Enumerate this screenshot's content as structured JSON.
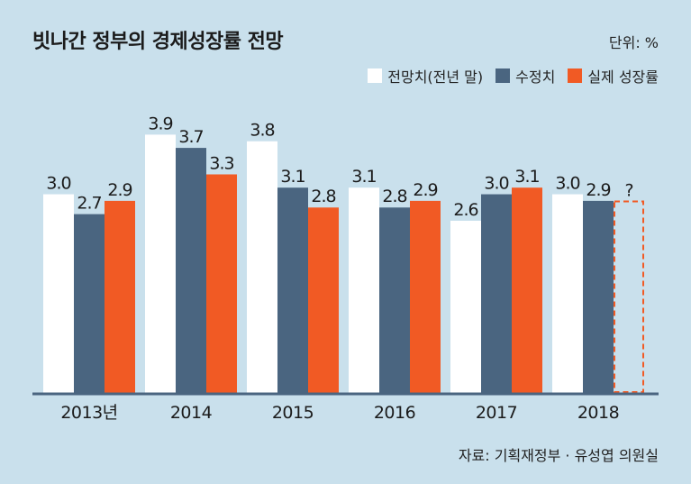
{
  "title": "빗나간 정부의 경제성장률 전망",
  "unit": "단위: %",
  "source": "자료: 기획재정부 · 유성엽 의원실",
  "chart_data": {
    "type": "bar",
    "categories": [
      "2013년",
      "2014",
      "2015",
      "2016",
      "2017",
      "2018"
    ],
    "series": [
      {
        "name": "전망치(전년 말)",
        "color": "#ffffff",
        "values": [
          3.0,
          3.9,
          3.8,
          3.1,
          2.6,
          3.0
        ],
        "labels": [
          "3.0",
          "3.9",
          "3.8",
          "3.1",
          "2.6",
          "3.0"
        ]
      },
      {
        "name": "수정치",
        "color": "#4a6580",
        "values": [
          2.7,
          3.7,
          3.1,
          2.8,
          3.0,
          2.9
        ],
        "labels": [
          "2.7",
          "3.7",
          "3.1",
          "2.8",
          "3.0",
          "2.9"
        ]
      },
      {
        "name": "실제 성장률",
        "color": "#f15a24",
        "values": [
          2.9,
          3.3,
          2.8,
          2.9,
          3.1,
          null
        ],
        "labels": [
          "2.9",
          "3.3",
          "2.8",
          "2.9",
          "3.1",
          "?"
        ]
      }
    ],
    "ylim": [
      0,
      4.3
    ],
    "legend_position": "top-right",
    "grid": false
  }
}
